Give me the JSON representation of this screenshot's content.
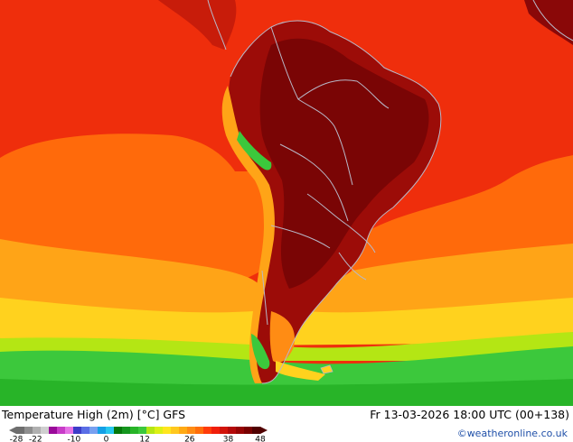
{
  "title": "Temperature High (2m) [°C] GFS",
  "valid_time": "Fr 13-03-2026 18:00 UTC (00+138)",
  "credit": "©weatheronline.co.uk",
  "legend": {
    "tick_labels": [
      "-28",
      "-22",
      "-10",
      "0",
      "12",
      "26",
      "38",
      "48"
    ],
    "colors": [
      "#6e6e6e",
      "#8e8e8e",
      "#b0b0b0",
      "#cfcfcf",
      "#9a0a9a",
      "#c83cc8",
      "#e673e6",
      "#3c3cc8",
      "#5a6ee6",
      "#78a0f0",
      "#14a0e6",
      "#28c8f0",
      "#05780a",
      "#14961e",
      "#28b428",
      "#3cc83c",
      "#b4e614",
      "#dcf014",
      "#ffe61e",
      "#ffc81e",
      "#ffaa14",
      "#ff8c14",
      "#ff6e0a",
      "#ff3c0a",
      "#f01e0a",
      "#d2140a",
      "#b40a0a",
      "#960505",
      "#780000",
      "#500000"
    ]
  },
  "palette": {
    "ocean_north": "#ef2e0c",
    "ocean_mid": "#ff6a0b",
    "ocean_south": "#ffa417",
    "cold_belt": "#ffd21e",
    "green_belt": "#3cc83c",
    "land_hot": "#9c0c08",
    "land_very_hot": "#7a0505",
    "land_warm": "#c81c0a",
    "border": "#b8b8c8",
    "credit_color": "#1f4fa8"
  }
}
